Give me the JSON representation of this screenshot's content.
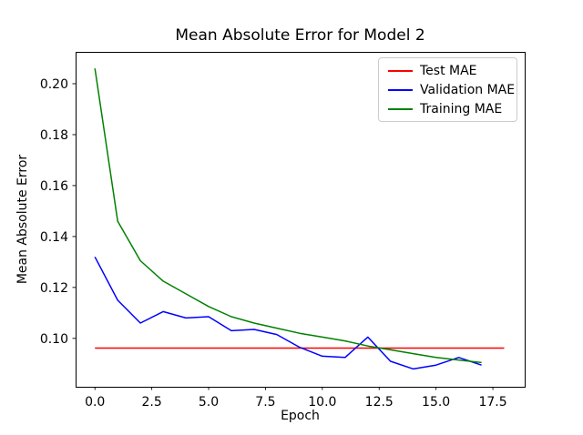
{
  "chart_data": {
    "type": "line",
    "title": "Mean Absolute Error for Model 2",
    "xlabel": "Epoch",
    "ylabel": "Mean Absolute Error",
    "xlim": [
      -0.85,
      18.9
    ],
    "ylim": [
      0.081,
      0.2125
    ],
    "xticks": [
      0,
      2.5,
      5,
      7.5,
      10,
      12.5,
      15,
      17.5
    ],
    "xtick_labels": [
      "0.0",
      "2.5",
      "5.0",
      "7.5",
      "10.0",
      "12.5",
      "15.0",
      "17.5"
    ],
    "yticks": [
      0.1,
      0.12,
      0.14,
      0.16,
      0.18,
      0.2
    ],
    "ytick_labels": [
      "0.10",
      "0.12",
      "0.14",
      "0.16",
      "0.18",
      "0.20"
    ],
    "grid": false,
    "background": "#ffffff",
    "spine_color": "#000000",
    "tick_color": "#000000",
    "legend": {
      "position": "upper right",
      "border_color": "#cccccc",
      "entries": [
        {
          "label": "Test MAE",
          "color": "#ff0000"
        },
        {
          "label": "Validation MAE",
          "color": "#0000ff"
        },
        {
          "label": "Training MAE",
          "color": "#008000"
        }
      ]
    },
    "series": [
      {
        "name": "Test MAE",
        "slug": "test-mae",
        "color": "#ff0000",
        "x": [
          0,
          1,
          2,
          3,
          4,
          5,
          6,
          7,
          8,
          9,
          10,
          11,
          12,
          13,
          14,
          15,
          16,
          17,
          18
        ],
        "values": [
          0.0962,
          0.0962,
          0.0962,
          0.0962,
          0.0962,
          0.0962,
          0.0962,
          0.0962,
          0.0962,
          0.0962,
          0.0962,
          0.0962,
          0.0962,
          0.0962,
          0.0962,
          0.0962,
          0.0962,
          0.0962,
          0.0962
        ]
      },
      {
        "name": "Validation MAE",
        "slug": "validation-mae",
        "color": "#0000ff",
        "x": [
          0,
          1,
          2,
          3,
          4,
          5,
          6,
          7,
          8,
          9,
          10,
          11,
          12,
          13,
          14,
          15,
          16,
          17
        ],
        "values": [
          0.132,
          0.115,
          0.106,
          0.1105,
          0.108,
          0.1085,
          0.103,
          0.1035,
          0.1015,
          0.0965,
          0.093,
          0.0925,
          0.1005,
          0.091,
          0.088,
          0.0895,
          0.0925,
          0.0895
        ]
      },
      {
        "name": "Training MAE",
        "slug": "training-mae",
        "color": "#008000",
        "x": [
          0,
          1,
          2,
          3,
          4,
          5,
          6,
          7,
          8,
          9,
          10,
          11,
          12,
          13,
          14,
          15,
          16,
          17
        ],
        "values": [
          0.206,
          0.146,
          0.1305,
          0.1225,
          0.1175,
          0.1125,
          0.1085,
          0.106,
          0.104,
          0.102,
          0.1005,
          0.099,
          0.097,
          0.0955,
          0.094,
          0.0925,
          0.0915,
          0.0905
        ]
      }
    ]
  }
}
